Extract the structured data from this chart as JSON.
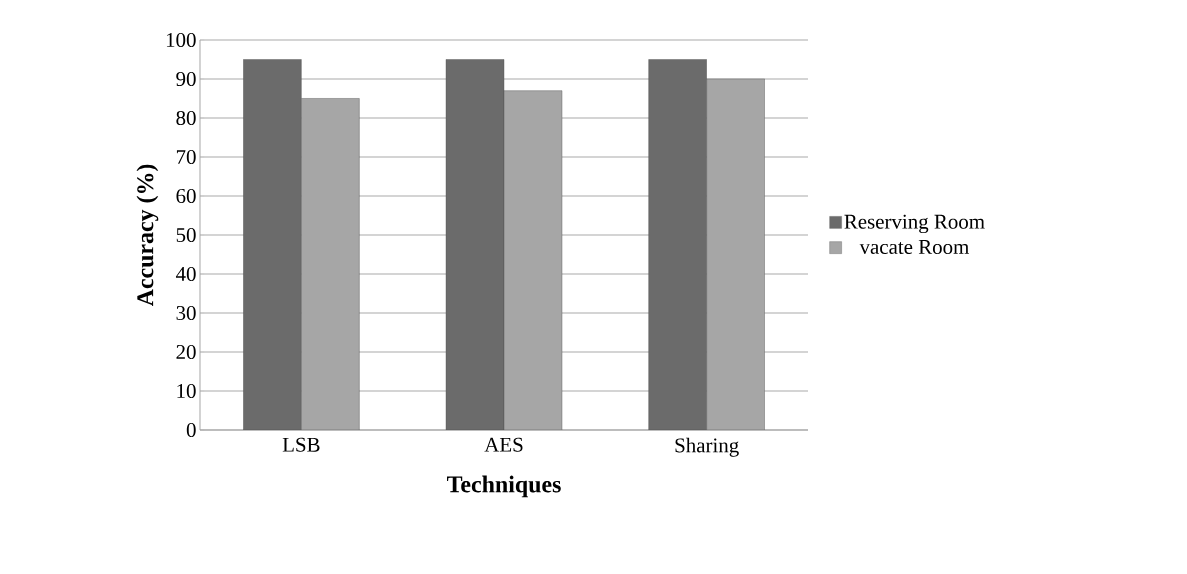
{
  "chart_data": {
    "type": "bar",
    "xlabel": "Techniques",
    "ylabel": "Accuracy (%)",
    "categories": [
      "LSB",
      "AES",
      "Sharing"
    ],
    "series": [
      {
        "name": "Reserving Room",
        "color": "#6b6b6b",
        "values": [
          95,
          95,
          95
        ]
      },
      {
        "name": "vacate Room",
        "color": "#a6a6a6",
        "values": [
          85,
          87,
          90
        ]
      }
    ],
    "ylim": [
      0,
      100
    ],
    "yticks": [
      0,
      10,
      20,
      30,
      40,
      50,
      60,
      70,
      80,
      90,
      100
    ],
    "grid": "y",
    "legend": "right"
  }
}
